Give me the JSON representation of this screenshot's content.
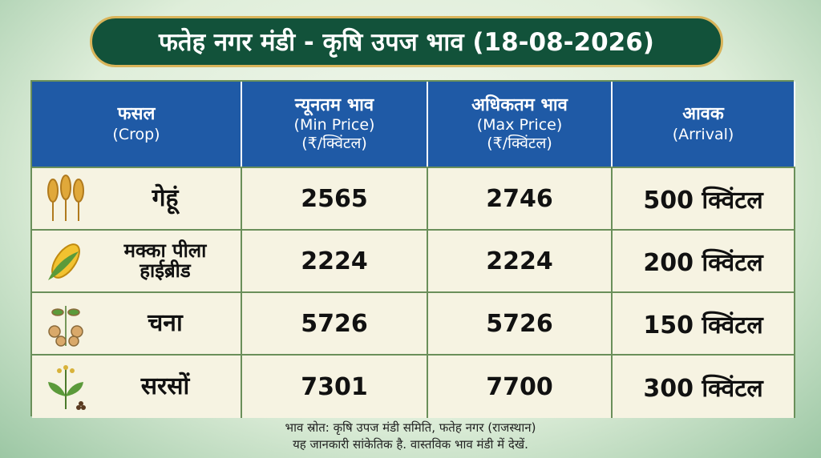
{
  "header": {
    "title": "फतेह नगर मंडी - कृषि उपज भाव (18-08-2026)"
  },
  "table": {
    "headers": [
      [
        "फसल",
        "(Crop)"
      ],
      [
        "न्यूनतम भाव",
        "(Min Price)",
        "(₹/क्विंटल)"
      ],
      [
        "अधिकतम भाव",
        "(Max Price)",
        "(₹/क्विंटल)"
      ],
      [
        "आवक",
        "(Arrival)"
      ]
    ],
    "rows": [
      [
        [
          "गेहूं"
        ],
        2565,
        2746,
        "500 क्विंटल"
      ],
      [
        [
          "मक्का पीला",
          "हाईब्रीड"
        ],
        2224,
        2224,
        "200 क्विंटल"
      ],
      [
        [
          "चना"
        ],
        5726,
        5726,
        "150 क्विंटल"
      ],
      [
        [
          "सरसों"
        ],
        7301,
        7700,
        "300 क्विंटल"
      ]
    ]
  },
  "footer": [
    "भाव स्रोत: कृषि उपज मंडी समिति, फतेह नगर (राजस्थान)",
    "यह जानकारी सांकेतिक है. वास्तविक भाव मंडी में देखें."
  ]
}
